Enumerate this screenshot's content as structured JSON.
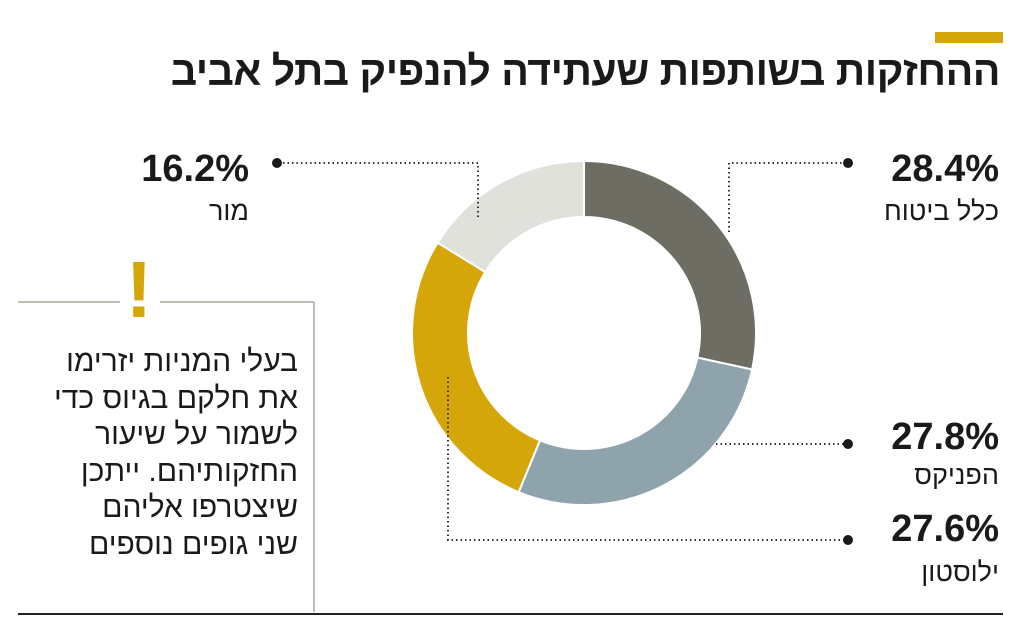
{
  "title": "ההחזקות בשותפות שעתידה להנפיק בתל אביב",
  "note": {
    "lines": [
      "בעלי המניות יזרימו",
      "את חלקם בגיוס כדי",
      "לשמור על שיעור",
      "החזקותיהם. ייתכן",
      "שיצטרפו אליהם",
      "שני גופים נוספים"
    ],
    "icon": "exclamation-icon",
    "exclamation": "!"
  },
  "colors": {
    "accent": "#d4a60a",
    "text": "#1a1a1a",
    "leader": "#333333",
    "box_line": "#bdbdb4"
  },
  "chart_data": {
    "type": "pie",
    "donut": true,
    "title": "ההחזקות בשותפות שעתידה להנפיק בתל אביב",
    "unit": "%",
    "slices": [
      {
        "label": "כלל ביטוח",
        "value": 28.4,
        "value_label": "28.4%",
        "color": "#6d6d63"
      },
      {
        "label": "הפניקס",
        "value": 27.8,
        "value_label": "27.8%",
        "color": "#8fa3ad"
      },
      {
        "label": "ילוסטון",
        "value": 27.6,
        "value_label": "27.6%",
        "color": "#d4a60a"
      },
      {
        "label": "מור",
        "value": 16.2,
        "value_label": "16.2%",
        "color": "#e1e1dc"
      }
    ]
  }
}
